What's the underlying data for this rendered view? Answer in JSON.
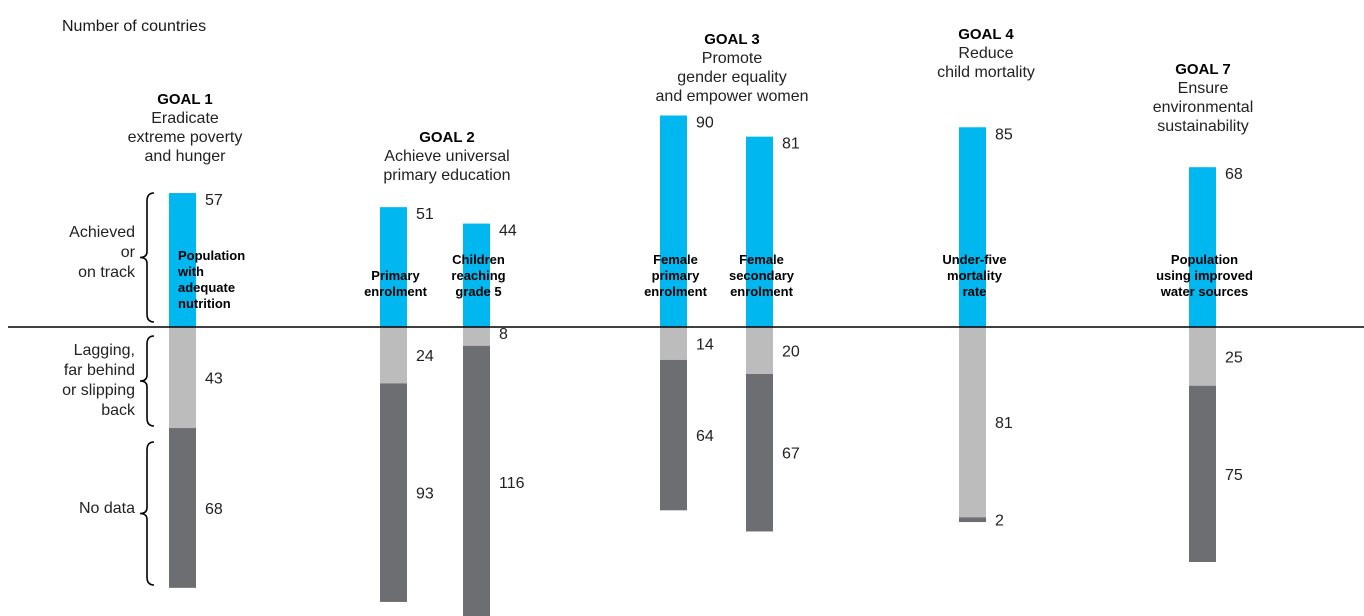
{
  "chart_data": {
    "type": "bar",
    "stacked": true,
    "ylabel": "Number of countries",
    "status_labels": {
      "achieved": [
        "Achieved",
        "or",
        "on track"
      ],
      "lagging": [
        "Lagging,",
        "far behind",
        "or slipping",
        "back"
      ],
      "no_data": [
        "No data"
      ]
    },
    "colors": {
      "achieved": "#00b7ef",
      "lagging": "#bcbcbc",
      "no_data": "#6d6e71"
    },
    "goals": [
      {
        "name": "GOAL 1",
        "description": [
          "Eradicate",
          "extreme poverty",
          "and hunger"
        ]
      },
      {
        "name": "GOAL 2",
        "description": [
          "Achieve universal",
          "primary education"
        ]
      },
      {
        "name": "GOAL 3",
        "description": [
          "Promote",
          "gender equality",
          "and empower women"
        ]
      },
      {
        "name": "GOAL 4",
        "description": [
          "Reduce",
          "child mortality"
        ]
      },
      {
        "name": "GOAL 7",
        "description": [
          "Ensure",
          "environmental",
          "sustainability"
        ]
      }
    ],
    "indicators": [
      {
        "goal": 0,
        "label": [
          "Population",
          "with",
          "adequate",
          "nutrition"
        ],
        "achieved": 57,
        "lagging": 43,
        "no_data": 68
      },
      {
        "goal": 1,
        "label": [
          "Primary",
          "enrolment"
        ],
        "achieved": 51,
        "lagging": 24,
        "no_data": 93
      },
      {
        "goal": 1,
        "label": [
          "Children",
          "reaching",
          "grade 5"
        ],
        "achieved": 44,
        "lagging": 8,
        "no_data": 116
      },
      {
        "goal": 2,
        "label": [
          "Female",
          "primary",
          "enrolment"
        ],
        "achieved": 90,
        "lagging": 14,
        "no_data": 64
      },
      {
        "goal": 2,
        "label": [
          "Female",
          "secondary",
          "enrolment"
        ],
        "achieved": 81,
        "lagging": 20,
        "no_data": 67
      },
      {
        "goal": 3,
        "label": [
          "Under-five",
          "mortality",
          "rate"
        ],
        "achieved": 85,
        "lagging": 81,
        "no_data": 2
      },
      {
        "goal": 4,
        "label": [
          "Population",
          "using improved",
          "water sources"
        ],
        "achieved": 68,
        "lagging": 25,
        "no_data": 75
      }
    ]
  }
}
